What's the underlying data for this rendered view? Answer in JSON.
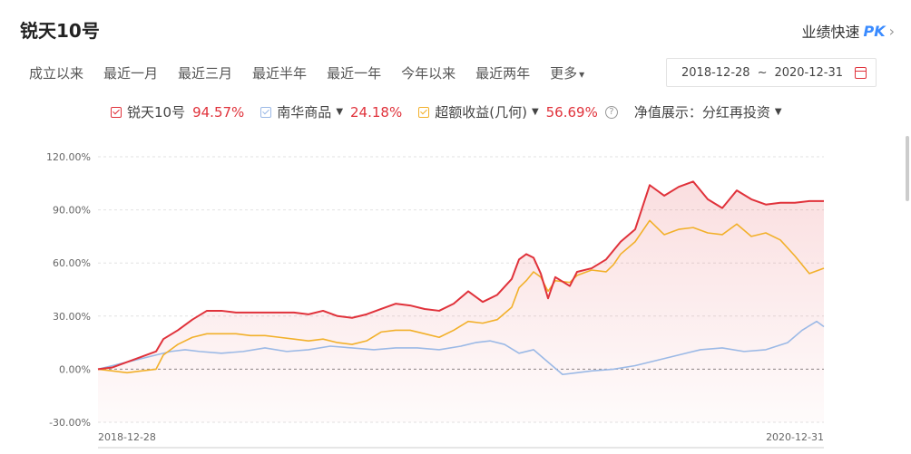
{
  "header": {
    "title": "锐天10号",
    "pk_label": "业绩快速",
    "pk_badge": "PK",
    "chevron": "›"
  },
  "tabs": [
    "成立以来",
    "最近一月",
    "最近三月",
    "最近半年",
    "最近一年",
    "今年以来",
    "最近两年",
    "更多"
  ],
  "tabs_more_arrow": "▾",
  "date_range": {
    "start": "2018-12-28",
    "separator": "~",
    "end": "2020-12-31",
    "icon": "calendar-icon"
  },
  "legend": {
    "fund": {
      "name": "锐天10号",
      "value": "94.57%",
      "color": "#e0323b"
    },
    "benchmark": {
      "name": "南华商品",
      "value": "24.18%",
      "color": "#9bb9e6",
      "arrow": "▼"
    },
    "excess": {
      "name": "超额收益(几何)",
      "value": "56.69%",
      "color": "#f2b02a",
      "arrow": "▼"
    },
    "help": "?",
    "nav_label": "净值展示：",
    "nav_value": "分红再投资",
    "nav_arrow": "▼"
  },
  "chart_data": {
    "type": "line",
    "x_start": "2018-12-28",
    "x_end": "2020-12-31",
    "yticks": [
      "120.00%",
      "90.00%",
      "60.00%",
      "30.00%",
      "0.00%",
      "-30.00%"
    ],
    "xticks": [
      "2018-12-28",
      "2020-12-31"
    ],
    "ylim": [
      -30,
      120
    ],
    "grid": true,
    "series": [
      {
        "name": "锐天10号",
        "color": "#e0323b",
        "x": [
          0,
          0.02,
          0.04,
          0.06,
          0.08,
          0.09,
          0.11,
          0.13,
          0.15,
          0.17,
          0.19,
          0.21,
          0.23,
          0.25,
          0.27,
          0.29,
          0.31,
          0.33,
          0.35,
          0.37,
          0.39,
          0.41,
          0.43,
          0.45,
          0.47,
          0.49,
          0.51,
          0.53,
          0.55,
          0.57,
          0.58,
          0.59,
          0.6,
          0.61,
          0.62,
          0.63,
          0.65,
          0.66,
          0.68,
          0.7,
          0.71,
          0.72,
          0.74,
          0.76,
          0.78,
          0.8,
          0.82,
          0.84,
          0.86,
          0.88,
          0.9,
          0.92,
          0.94,
          0.96,
          0.98,
          1.0
        ],
        "values": [
          0,
          1,
          4,
          7,
          10,
          17,
          22,
          28,
          33,
          33,
          32,
          32,
          32,
          32,
          32,
          31,
          33,
          30,
          29,
          31,
          34,
          37,
          36,
          34,
          33,
          37,
          44,
          38,
          42,
          51,
          62,
          65,
          63,
          54,
          40,
          52,
          47,
          55,
          57,
          62,
          67,
          72,
          79,
          104,
          98,
          103,
          106,
          96,
          91,
          101,
          96,
          93,
          94,
          94,
          95,
          95
        ]
      },
      {
        "name": "南华商品",
        "color": "#9bb9e6",
        "x": [
          0,
          0.02,
          0.04,
          0.06,
          0.08,
          0.1,
          0.12,
          0.14,
          0.17,
          0.2,
          0.23,
          0.26,
          0.29,
          0.32,
          0.35,
          0.38,
          0.41,
          0.44,
          0.47,
          0.5,
          0.52,
          0.54,
          0.56,
          0.58,
          0.6,
          0.62,
          0.64,
          0.66,
          0.68,
          0.71,
          0.74,
          0.77,
          0.8,
          0.83,
          0.86,
          0.89,
          0.92,
          0.95,
          0.97,
          0.99,
          1.0
        ],
        "values": [
          0,
          2,
          4,
          6,
          8,
          10,
          11,
          10,
          9,
          10,
          12,
          10,
          11,
          13,
          12,
          11,
          12,
          12,
          11,
          13,
          15,
          16,
          14,
          9,
          11,
          4,
          -3,
          -2,
          -1,
          0,
          2,
          5,
          8,
          11,
          12,
          10,
          11,
          15,
          22,
          27,
          24
        ]
      },
      {
        "name": "超额收益(几何)",
        "color": "#f2b02a",
        "x": [
          0,
          0.02,
          0.04,
          0.06,
          0.08,
          0.09,
          0.11,
          0.13,
          0.15,
          0.17,
          0.19,
          0.21,
          0.23,
          0.25,
          0.27,
          0.29,
          0.31,
          0.33,
          0.35,
          0.37,
          0.39,
          0.41,
          0.43,
          0.45,
          0.47,
          0.49,
          0.51,
          0.53,
          0.55,
          0.57,
          0.58,
          0.59,
          0.6,
          0.61,
          0.62,
          0.63,
          0.65,
          0.66,
          0.68,
          0.7,
          0.71,
          0.72,
          0.74,
          0.76,
          0.78,
          0.8,
          0.82,
          0.84,
          0.86,
          0.88,
          0.9,
          0.92,
          0.94,
          0.96,
          0.98,
          1.0
        ],
        "values": [
          0,
          -1,
          -2,
          -1,
          0,
          8,
          14,
          18,
          20,
          20,
          20,
          19,
          19,
          18,
          17,
          16,
          17,
          15,
          14,
          16,
          21,
          22,
          22,
          20,
          18,
          22,
          27,
          26,
          28,
          35,
          46,
          50,
          55,
          52,
          44,
          50,
          49,
          53,
          56,
          55,
          59,
          65,
          72,
          84,
          76,
          79,
          80,
          77,
          76,
          82,
          75,
          77,
          73,
          64,
          54,
          57
        ]
      }
    ]
  }
}
